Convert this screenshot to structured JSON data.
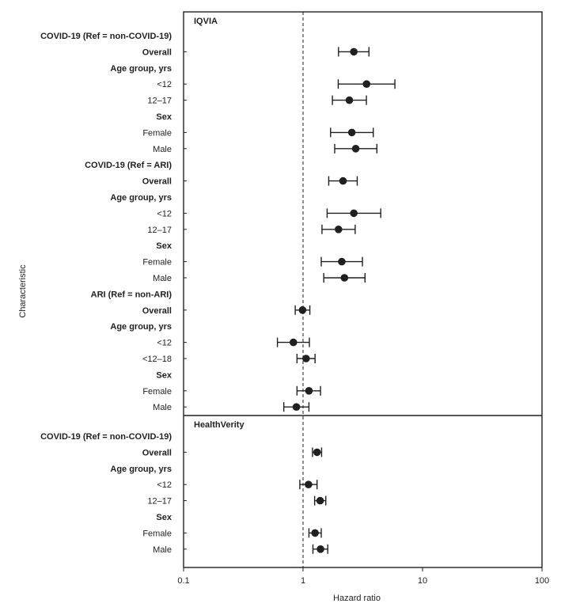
{
  "chart_data": {
    "type": "forest",
    "xlabel": "Hazard ratio",
    "ylabel": "Characteristic",
    "x_scale": "log",
    "xlim": [
      0.1,
      100
    ],
    "xticks": [
      0.1,
      1,
      10,
      100
    ],
    "xtick_labels": [
      "0.1",
      "1",
      "10",
      "100"
    ],
    "reference_line": 1,
    "panels": [
      {
        "name": "IQVIA",
        "rows": [
          {
            "label": "COVID-19 (Ref = non-COVID-19)",
            "header": true
          },
          {
            "label": "Overall",
            "bold": true,
            "hr": 2.66,
            "lo": 1.98,
            "hi": 3.56
          },
          {
            "label": "Age group, yrs",
            "header": true
          },
          {
            "label": "<12",
            "hr": 3.4,
            "lo": 1.97,
            "hi": 5.87
          },
          {
            "label": "12–17",
            "hr": 2.44,
            "lo": 1.76,
            "hi": 3.39
          },
          {
            "label": "Sex",
            "header": true
          },
          {
            "label": "Female",
            "hr": 2.56,
            "lo": 1.7,
            "hi": 3.87
          },
          {
            "label": "Male",
            "hr": 2.76,
            "lo": 1.84,
            "hi": 4.15
          },
          {
            "label": "COVID-19 (Ref = ARI)",
            "header": true
          },
          {
            "label": "Overall",
            "bold": true,
            "hr": 2.16,
            "lo": 1.64,
            "hi": 2.84
          },
          {
            "label": "Age group, yrs",
            "header": true
          },
          {
            "label": "<12",
            "hr": 2.66,
            "lo": 1.59,
            "hi": 4.47
          },
          {
            "label": "12–17",
            "hr": 1.98,
            "lo": 1.44,
            "hi": 2.73
          },
          {
            "label": "Sex",
            "header": true
          },
          {
            "label": "Female",
            "hr": 2.11,
            "lo": 1.42,
            "hi": 3.14
          },
          {
            "label": "Male",
            "hr": 2.22,
            "lo": 1.49,
            "hi": 3.3
          },
          {
            "label": "ARI (Ref = non-ARI)",
            "header": true
          },
          {
            "label": "Overall",
            "bold": true,
            "hr": 0.99,
            "lo": 0.86,
            "hi": 1.14
          },
          {
            "label": "Age group, yrs",
            "header": true
          },
          {
            "label": "<12",
            "hr": 0.83,
            "lo": 0.61,
            "hi": 1.13
          },
          {
            "label": "<12–18",
            "hr": 1.06,
            "lo": 0.89,
            "hi": 1.26
          },
          {
            "label": "Sex",
            "header": true
          },
          {
            "label": "Female",
            "hr": 1.12,
            "lo": 0.89,
            "hi": 1.4
          },
          {
            "label": "Male",
            "hr": 0.88,
            "lo": 0.69,
            "hi": 1.12
          }
        ]
      },
      {
        "name": "HealthVerity",
        "rows": [
          {
            "label": "COVID-19 (Ref = non-COVID-19)",
            "header": true
          },
          {
            "label": "Overall",
            "bold": true,
            "hr": 1.31,
            "lo": 1.2,
            "hi": 1.43
          },
          {
            "label": "Age group, yrs",
            "header": true
          },
          {
            "label": "<12",
            "hr": 1.11,
            "lo": 0.94,
            "hi": 1.31
          },
          {
            "label": "12–17",
            "hr": 1.39,
            "lo": 1.25,
            "hi": 1.55
          },
          {
            "label": "Sex",
            "header": true
          },
          {
            "label": "Female",
            "hr": 1.26,
            "lo": 1.12,
            "hi": 1.42
          },
          {
            "label": "Male",
            "hr": 1.4,
            "lo": 1.21,
            "hi": 1.61
          }
        ]
      }
    ]
  }
}
